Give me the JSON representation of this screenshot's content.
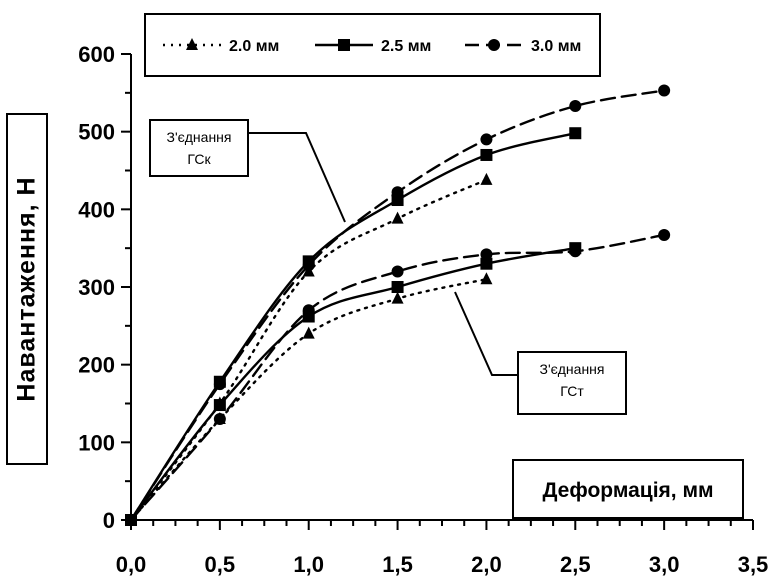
{
  "chart_data": {
    "type": "line",
    "xlabel": "Деформація, мм",
    "ylabel": "Навантаження, Н",
    "xlim": [
      0,
      3.5
    ],
    "ylim": [
      0,
      600
    ],
    "x_ticks": [
      "0,0",
      "0,5",
      "1,0",
      "1,5",
      "2,0",
      "2,5",
      "3,0",
      "3,5"
    ],
    "y_ticks": [
      "0",
      "100",
      "200",
      "300",
      "400",
      "500",
      "600"
    ],
    "grid": false,
    "legend_position": "top",
    "legend": [
      {
        "label": "2.0 мм",
        "marker": "triangle",
        "style": "dotted"
      },
      {
        "label": "2.5 мм",
        "marker": "square",
        "style": "solid"
      },
      {
        "label": "3.0 мм",
        "marker": "circle",
        "style": "dashed"
      }
    ],
    "annotations": [
      {
        "lines": [
          "З'єднання",
          "ГСк"
        ],
        "target_group": "upper"
      },
      {
        "lines": [
          "З'єднання",
          "ГСт"
        ],
        "target_group": "lower"
      }
    ],
    "series": [
      {
        "legend_index": 0,
        "group": "upper",
        "x": [
          0,
          0.5,
          1.0,
          1.5,
          2.0
        ],
        "y": [
          0,
          150,
          320,
          388,
          438
        ]
      },
      {
        "legend_index": 1,
        "group": "upper",
        "x": [
          0,
          0.5,
          1.0,
          1.5,
          2.0,
          2.5
        ],
        "y": [
          0,
          178,
          333,
          412,
          470,
          498
        ]
      },
      {
        "legend_index": 2,
        "group": "upper",
        "x": [
          0,
          0.5,
          1.0,
          1.5,
          2.0,
          2.5,
          3.0
        ],
        "y": [
          0,
          175,
          328,
          422,
          490,
          533,
          553
        ]
      },
      {
        "legend_index": 0,
        "group": "lower",
        "x": [
          0,
          0.5,
          1.0,
          1.5,
          2.0
        ],
        "y": [
          0,
          130,
          240,
          285,
          310
        ]
      },
      {
        "legend_index": 1,
        "group": "lower",
        "x": [
          0,
          0.5,
          1.0,
          1.5,
          2.0,
          2.5
        ],
        "y": [
          0,
          148,
          262,
          300,
          330,
          350
        ]
      },
      {
        "legend_index": 2,
        "group": "lower",
        "x": [
          0,
          0.5,
          1.0,
          1.5,
          2.0,
          2.5,
          3.0
        ],
        "y": [
          0,
          130,
          270,
          320,
          342,
          346,
          367
        ]
      }
    ]
  }
}
